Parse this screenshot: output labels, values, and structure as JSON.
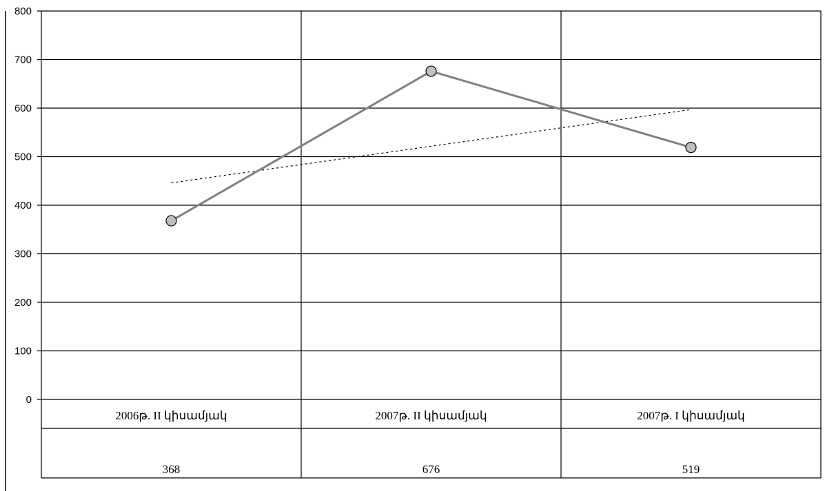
{
  "chart_data": {
    "type": "line",
    "categories": [
      "2006թ. II կիսամյակ",
      "2007թ. II կիսամյակ",
      "2007թ. I կիսամյակ"
    ],
    "series": [
      {
        "values": [
          368,
          676,
          519
        ],
        "color": "#808080",
        "marker": "circle"
      }
    ],
    "trendline": {
      "style": "dotted",
      "color": "#000000",
      "start": 446,
      "end": 597
    },
    "yticks": [
      "0",
      "100",
      "200",
      "300",
      "400",
      "500",
      "600",
      "700",
      "800"
    ],
    "ylim": [
      0,
      800
    ],
    "grid": {
      "horizontal": true,
      "vertical": true
    },
    "data_table": {
      "values": [
        "368",
        "676",
        "519"
      ]
    },
    "colors": {
      "marker_fill": "#c0c0c0",
      "gridline": "#000000"
    }
  }
}
